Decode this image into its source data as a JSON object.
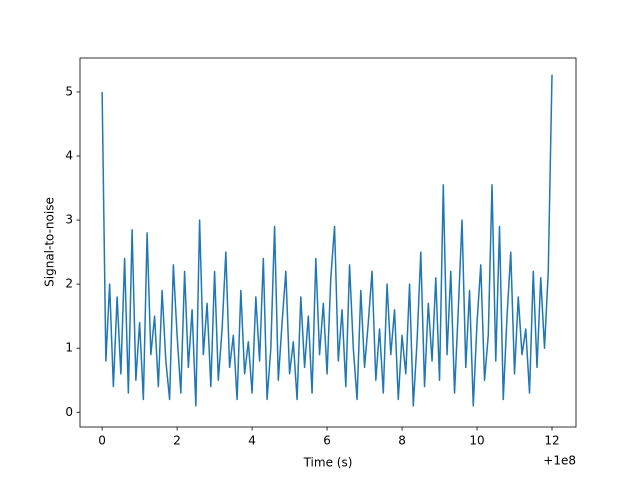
{
  "chart_data": {
    "type": "line",
    "xlabel": "Time (s)",
    "ylabel": "Signal-to-noise",
    "x_offset_label": "+1e8",
    "xlim": [
      -0.59,
      12.64
    ],
    "ylim": [
      -0.23,
      5.53
    ],
    "xticks": [
      0,
      2,
      4,
      6,
      8,
      10,
      12
    ],
    "yticks": [
      0,
      1,
      2,
      3,
      4,
      5
    ],
    "grid": false,
    "series": [
      {
        "color": "#1f77b4",
        "x": [
          0,
          0.1,
          0.2,
          0.3,
          0.4,
          0.5,
          0.6,
          0.7,
          0.8,
          0.9,
          1,
          1.1,
          1.2,
          1.3,
          1.4,
          1.5,
          1.6,
          1.7,
          1.8,
          1.9,
          2,
          2.1,
          2.2,
          2.3,
          2.4,
          2.5,
          2.6,
          2.7,
          2.8,
          2.9,
          3,
          3.1,
          3.2,
          3.3,
          3.4,
          3.5,
          3.6,
          3.7,
          3.8,
          3.9,
          4,
          4.1,
          4.2,
          4.3,
          4.4,
          4.5,
          4.6,
          4.7,
          4.8,
          4.9,
          5,
          5.1,
          5.2,
          5.3,
          5.4,
          5.5,
          5.6,
          5.7,
          5.8,
          5.9,
          6,
          6.1,
          6.2,
          6.3,
          6.4,
          6.5,
          6.6,
          6.7,
          6.8,
          6.9,
          7,
          7.1,
          7.2,
          7.3,
          7.4,
          7.5,
          7.6,
          7.7,
          7.8,
          7.9,
          8,
          8.1,
          8.2,
          8.3,
          8.4,
          8.5,
          8.6,
          8.7,
          8.8,
          8.9,
          9,
          9.1,
          9.2,
          9.3,
          9.4,
          9.5,
          9.6,
          9.7,
          9.8,
          9.9,
          10,
          10.1,
          10.2,
          10.3,
          10.4,
          10.5,
          10.6,
          10.7,
          10.8,
          10.9,
          11,
          11.1,
          11.2,
          11.3,
          11.4,
          11.5,
          11.6,
          11.7,
          11.8,
          11.9,
          12
        ],
        "values": [
          5.0,
          0.8,
          2.0,
          0.4,
          1.8,
          0.6,
          2.4,
          0.3,
          2.85,
          0.5,
          1.4,
          0.2,
          2.8,
          0.9,
          1.5,
          0.4,
          1.9,
          0.8,
          0.2,
          2.3,
          1.2,
          0.3,
          2.2,
          0.7,
          1.6,
          0.1,
          3.0,
          0.9,
          1.7,
          0.4,
          2.2,
          0.5,
          1.3,
          2.5,
          0.7,
          1.2,
          0.2,
          1.9,
          0.6,
          1.1,
          0.3,
          1.8,
          0.8,
          2.4,
          0.2,
          1.0,
          2.9,
          0.5,
          1.4,
          2.2,
          0.6,
          1.1,
          0.2,
          1.8,
          0.7,
          1.5,
          0.3,
          2.4,
          0.9,
          1.7,
          0.6,
          2.1,
          2.9,
          0.8,
          1.6,
          0.4,
          2.3,
          1.0,
          0.2,
          1.9,
          0.7,
          1.4,
          2.2,
          0.5,
          1.3,
          0.3,
          2.0,
          0.9,
          1.6,
          0.2,
          1.2,
          0.6,
          2.0,
          0.1,
          1.1,
          2.5,
          0.4,
          1.7,
          0.8,
          2.1,
          0.5,
          3.55,
          0.9,
          2.2,
          0.3,
          1.6,
          3.0,
          0.7,
          1.9,
          0.1,
          1.4,
          2.3,
          0.5,
          1.2,
          3.55,
          0.8,
          2.9,
          0.2,
          1.5,
          2.5,
          0.6,
          1.8,
          0.9,
          1.3,
          0.3,
          2.2,
          0.7,
          2.1,
          1.0,
          2.2,
          5.27
        ]
      }
    ]
  }
}
